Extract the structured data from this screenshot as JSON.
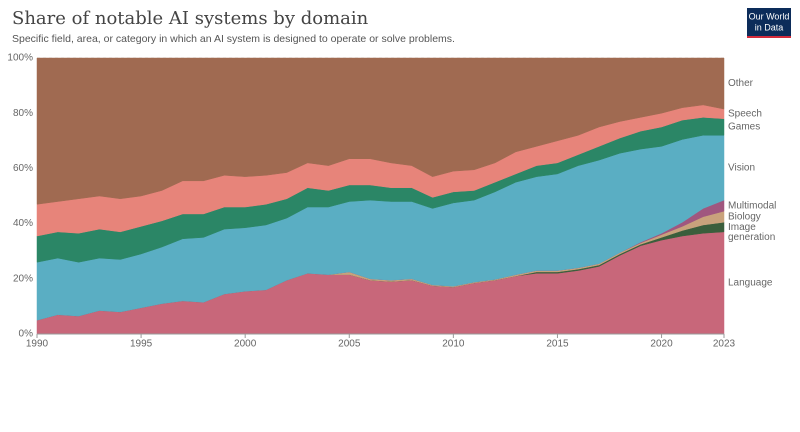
{
  "logo": [
    "Our World",
    "in Data"
  ],
  "chart_data": {
    "type": "stacked-area",
    "title": "Share of notable AI systems by domain",
    "subtitle": "Specific field, area, or category in which an AI system is designed to operate or solve problems.",
    "x": [
      1990,
      1991,
      1992,
      1993,
      1994,
      1995,
      1996,
      1997,
      1998,
      1999,
      2000,
      2001,
      2002,
      2003,
      2004,
      2005,
      2006,
      2007,
      2008,
      2009,
      2010,
      2011,
      2012,
      2013,
      2014,
      2015,
      2016,
      2017,
      2018,
      2019,
      2020,
      2021,
      2022,
      2023
    ],
    "xlim": [
      1990,
      2023
    ],
    "xticks": [
      1990,
      1995,
      2000,
      2005,
      2010,
      2015,
      2020,
      2023
    ],
    "ylim": [
      0,
      100
    ],
    "yticks": [
      {
        "value": 0,
        "label": "0%"
      },
      {
        "value": 20,
        "label": "20%"
      },
      {
        "value": 40,
        "label": "40%"
      },
      {
        "value": 60,
        "label": "60%"
      },
      {
        "value": 80,
        "label": "80%"
      },
      {
        "value": 100,
        "label": "100%"
      }
    ],
    "grid": true,
    "series": [
      {
        "name": "Language",
        "color": "#c8677a",
        "values": [
          5,
          7,
          6.5,
          8.5,
          8,
          9.5,
          11,
          12,
          11.5,
          14.5,
          15.5,
          16,
          19.5,
          22,
          21.5,
          21.5,
          19.5,
          19,
          19.5,
          17.5,
          17,
          18.5,
          19.5,
          21,
          22,
          22,
          23,
          24.5,
          28.5,
          32,
          34,
          35.5,
          36.5,
          37
        ]
      },
      {
        "name": "Image generation",
        "color": "#3b5e3c",
        "values": [
          0,
          0,
          0,
          0,
          0,
          0,
          0,
          0,
          0,
          0,
          0,
          0,
          0,
          0,
          0,
          0,
          0,
          0,
          0,
          0,
          0,
          0,
          0,
          0,
          0.5,
          0.5,
          0.5,
          0.5,
          0.5,
          0.5,
          1,
          2,
          3,
          3.5
        ]
      },
      {
        "name": "Biology",
        "color": "#c9a27c",
        "values": [
          0,
          0,
          0,
          0,
          0,
          0,
          0,
          0,
          0,
          0,
          0,
          0,
          0,
          0,
          0,
          1,
          0.5,
          0.5,
          0.5,
          0.3,
          0.3,
          0.3,
          0.3,
          0.5,
          0.5,
          0.5,
          0.5,
          0.5,
          0.5,
          0.5,
          1,
          1.5,
          3,
          4
        ]
      },
      {
        "name": "Multimodal",
        "color": "#a0577f",
        "values": [
          0,
          0,
          0,
          0,
          0,
          0,
          0,
          0,
          0,
          0,
          0,
          0,
          0,
          0,
          0,
          0,
          0,
          0,
          0,
          0,
          0,
          0,
          0,
          0,
          0,
          0,
          0,
          0,
          0,
          0.3,
          0.5,
          1.5,
          3,
          4
        ]
      },
      {
        "name": "Vision",
        "color": "#5aaec3",
        "values": [
          21,
          20.5,
          19.5,
          19,
          19,
          19.5,
          20.5,
          22.5,
          23.5,
          23.5,
          23,
          23.5,
          22.5,
          24,
          24.5,
          25.5,
          28.5,
          28.5,
          28,
          27.7,
          30.2,
          29.7,
          31.7,
          33.5,
          34,
          35,
          37,
          37.5,
          36,
          33.7,
          31.5,
          30,
          26.5,
          23.5
        ]
      },
      {
        "name": "Games",
        "color": "#2b8666",
        "values": [
          9.5,
          9.5,
          10.5,
          10.5,
          10,
          10,
          9.5,
          9,
          8.5,
          8,
          7.5,
          7.5,
          7,
          7,
          6,
          6,
          5.5,
          5,
          5,
          4,
          4,
          3.5,
          3.5,
          3,
          4,
          4,
          4,
          5,
          5.5,
          6.5,
          7,
          7,
          6.5,
          6
        ]
      },
      {
        "name": "Speech",
        "color": "#e7847a",
        "values": [
          11.5,
          11,
          12.5,
          12,
          12,
          11,
          11,
          12,
          12,
          11.5,
          11,
          10.5,
          9.5,
          9,
          9,
          9.5,
          9.5,
          9,
          8,
          7.5,
          7.5,
          7.5,
          7,
          8,
          7,
          8,
          7,
          7,
          6,
          5,
          5,
          4.5,
          4.5,
          3.5
        ]
      },
      {
        "name": "Other",
        "color": "#a06a51",
        "values": [
          53,
          52,
          51,
          50,
          51,
          50,
          48,
          44.5,
          44.5,
          42.5,
          43,
          42.5,
          41.5,
          38,
          39,
          36.5,
          36.5,
          38,
          39,
          43,
          41,
          40.5,
          38,
          34,
          32,
          30,
          28,
          25,
          23,
          21.5,
          20,
          18,
          17,
          18.5
        ]
      }
    ]
  }
}
